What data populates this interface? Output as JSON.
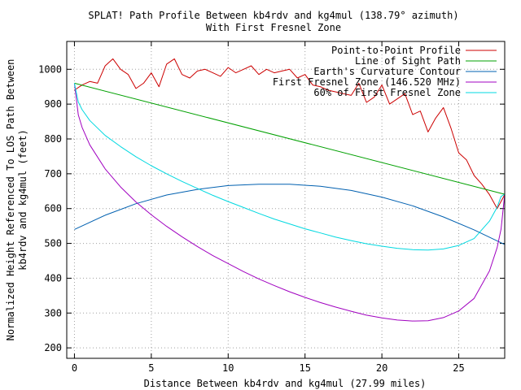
{
  "chart_data": {
    "type": "line",
    "title": "SPLAT! Path Profile Between kb4rdv and kg4mul (138.79° azimuth)",
    "subtitle": "With First Fresnel Zone",
    "xlabel": "Distance Between kb4rdv and kg4mul (27.99 miles)",
    "ylabel_line1": "Normalized Height Referenced To LOS Path Between",
    "ylabel_line2": "kb4rdv and kg4mul (feet)",
    "xlim": [
      -0.5,
      27.99
    ],
    "ylim": [
      170,
      1080
    ],
    "x_ticks": [
      0,
      5,
      10,
      15,
      20,
      25
    ],
    "y_ticks": [
      200,
      300,
      400,
      500,
      600,
      700,
      800,
      900,
      1000
    ],
    "grid": true,
    "legend_position": "top-right",
    "colors": {
      "profile": "#cc0000",
      "los": "#00a000",
      "curvature": "#0060b0",
      "fresnel": "#a000c0",
      "fresnel60": "#00d8e0"
    },
    "series": [
      {
        "name": "Point-to-Point Profile",
        "x": [
          0,
          0.5,
          1,
          1.5,
          2,
          2.5,
          3,
          3.5,
          4,
          4.5,
          5,
          5.5,
          6,
          6.5,
          7,
          7.5,
          8,
          8.5,
          9,
          9.5,
          10,
          10.5,
          11,
          11.5,
          12,
          12.5,
          13,
          13.5,
          14,
          14.5,
          15,
          15.5,
          16,
          16.5,
          17,
          17.5,
          18,
          18.5,
          19,
          19.5,
          20,
          20.5,
          21,
          21.5,
          22,
          22.5,
          23,
          23.5,
          24,
          24.5,
          25,
          25.5,
          26,
          26.5,
          27,
          27.5,
          27.99
        ],
        "y": [
          940,
          955,
          965,
          960,
          1010,
          1030,
          1000,
          985,
          945,
          960,
          990,
          950,
          1015,
          1030,
          985,
          975,
          995,
          1000,
          990,
          980,
          1005,
          990,
          1000,
          1010,
          985,
          1000,
          990,
          995,
          1000,
          975,
          985,
          955,
          950,
          940,
          935,
          930,
          925,
          960,
          905,
          920,
          955,
          900,
          915,
          930,
          870,
          880,
          820,
          860,
          890,
          830,
          760,
          740,
          695,
          670,
          640,
          600,
          640
        ]
      },
      {
        "name": "Line of Sight Path",
        "x": [
          0,
          27.99
        ],
        "y": [
          960,
          641
        ]
      },
      {
        "name": "Earth's Curvature Contour",
        "x": [
          0,
          2,
          4,
          6,
          8,
          10,
          12,
          14,
          16,
          18,
          20,
          22,
          24,
          26,
          27.99
        ],
        "y": [
          540,
          581,
          614,
          639,
          655,
          666,
          670,
          670,
          664,
          652,
          633,
          608,
          576,
          539,
          497
        ]
      },
      {
        "name": "First Fresnel Zone (146.520 MHz)",
        "x": [
          0,
          0.25,
          0.5,
          1,
          2,
          3,
          4,
          5,
          6,
          7,
          8,
          9,
          10,
          11,
          12,
          13,
          14,
          15,
          16,
          17,
          18,
          19,
          20,
          21,
          22,
          23,
          24,
          25,
          26,
          27,
          27.5,
          27.75,
          27.99
        ],
        "y": [
          960,
          869,
          833,
          783,
          714,
          662,
          619,
          582,
          549,
          519,
          491,
          465,
          442,
          419,
          398,
          379,
          361,
          345,
          330,
          317,
          305,
          294,
          286,
          280,
          277,
          278,
          287,
          306,
          342,
          421,
          488,
          541,
          641
        ]
      },
      {
        "name": "60% of First Fresnel Zone",
        "x": [
          0,
          0.25,
          0.5,
          1,
          2,
          3,
          4,
          5,
          6,
          7,
          8,
          9,
          10,
          11,
          12,
          13,
          14,
          15,
          16,
          17,
          18,
          19,
          20,
          21,
          22,
          23,
          24,
          25,
          26,
          27,
          27.5,
          27.75,
          27.99
        ],
        "y": [
          960,
          906,
          884,
          853,
          810,
          778,
          749,
          723,
          700,
          678,
          658,
          638,
          620,
          603,
          586,
          570,
          556,
          542,
          530,
          518,
          508,
          499,
          492,
          486,
          482,
          481,
          484,
          494,
          514,
          564,
          604,
          635,
          641
        ]
      }
    ]
  }
}
